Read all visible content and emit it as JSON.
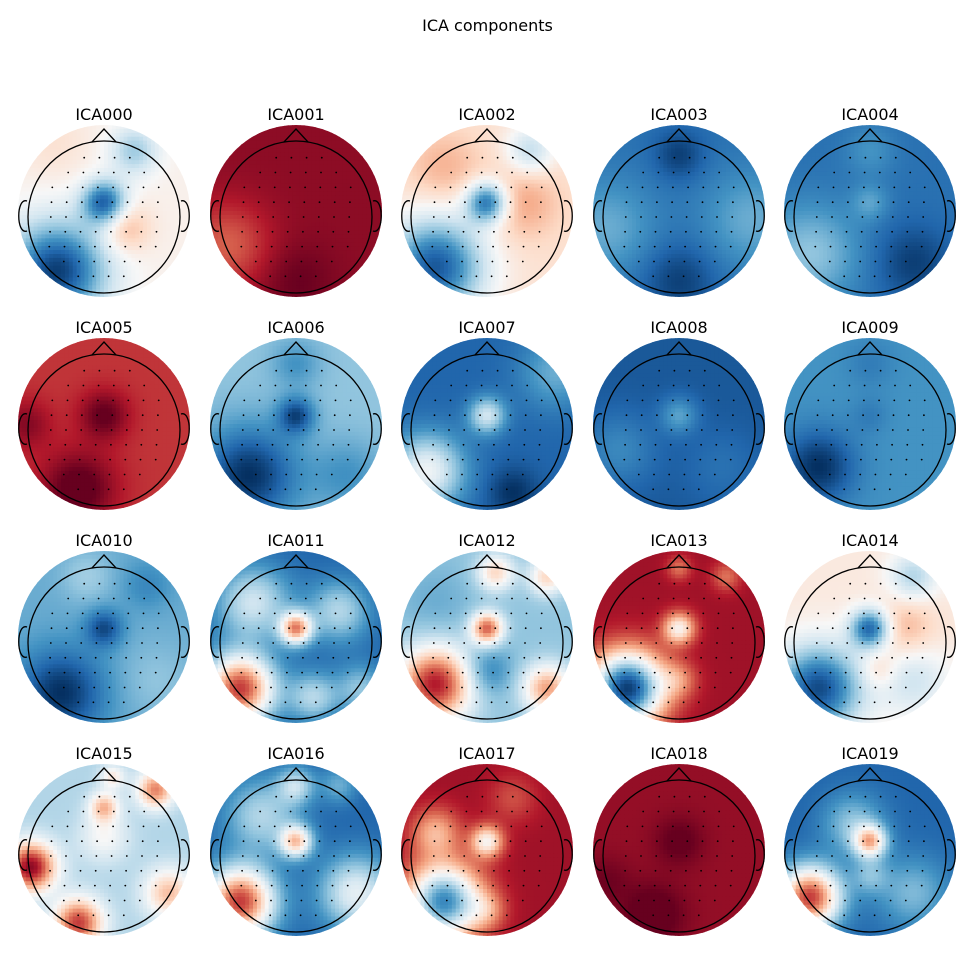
{
  "figure": {
    "title": "ICA components"
  },
  "chart_data": {
    "type": "heatmap",
    "title": "ICA components",
    "colormap": "RdBu_r",
    "grid": false,
    "legend": "none",
    "components": [
      {
        "name": "ICA000",
        "base": 0.05,
        "blobs": [
          [
            0.0,
            0.1,
            -0.85,
            0.18
          ],
          [
            -0.55,
            -0.7,
            -1.0,
            0.4
          ],
          [
            0.35,
            0.7,
            -0.4,
            0.2
          ],
          [
            0.25,
            -0.2,
            0.3,
            0.2
          ],
          [
            -0.6,
            0.8,
            0.1,
            0.3
          ]
        ]
      },
      {
        "name": "ICA001",
        "base": 0.9,
        "blobs": [
          [
            -0.8,
            -0.4,
            -0.3,
            0.35
          ],
          [
            0.0,
            -0.8,
            0.1,
            0.3
          ]
        ]
      },
      {
        "name": "ICA002",
        "base": 0.15,
        "blobs": [
          [
            0.0,
            0.1,
            -0.9,
            0.17
          ],
          [
            -0.6,
            -0.65,
            -1.0,
            0.4
          ],
          [
            0.5,
            0.7,
            -0.4,
            0.2
          ],
          [
            0.4,
            0.1,
            0.25,
            0.3
          ],
          [
            -0.5,
            0.5,
            0.2,
            0.3
          ]
        ]
      },
      {
        "name": "ICA003",
        "base": -0.75,
        "blobs": [
          [
            -0.85,
            -0.2,
            0.25,
            0.4
          ],
          [
            0.85,
            -0.1,
            0.25,
            0.4
          ],
          [
            0.0,
            0.65,
            -0.2,
            0.2
          ],
          [
            0.0,
            -0.8,
            -0.2,
            0.3
          ]
        ]
      },
      {
        "name": "ICA004",
        "base": -0.75,
        "blobs": [
          [
            -0.7,
            -0.5,
            0.35,
            0.4
          ],
          [
            0.0,
            0.1,
            0.2,
            0.15
          ],
          [
            0.0,
            0.7,
            0.15,
            0.2
          ],
          [
            0.5,
            -0.6,
            -0.2,
            0.3
          ]
        ]
      },
      {
        "name": "ICA005",
        "base": 0.72,
        "blobs": [
          [
            0.0,
            0.1,
            0.3,
            0.2
          ],
          [
            -0.3,
            -0.75,
            0.35,
            0.3
          ],
          [
            -0.9,
            0.0,
            0.2,
            0.2
          ]
        ]
      },
      {
        "name": "ICA006",
        "base": -0.4,
        "blobs": [
          [
            0.0,
            0.1,
            -0.5,
            0.15
          ],
          [
            -0.55,
            -0.6,
            -0.6,
            0.4
          ],
          [
            0.0,
            0.7,
            -0.2,
            0.2
          ],
          [
            0.6,
            -0.6,
            -0.2,
            0.3
          ]
        ]
      },
      {
        "name": "ICA007",
        "base": -0.8,
        "blobs": [
          [
            0.0,
            0.1,
            0.6,
            0.15
          ],
          [
            -0.7,
            -0.55,
            0.75,
            0.3
          ],
          [
            0.3,
            -0.8,
            -0.2,
            0.2
          ],
          [
            0.8,
            0.6,
            0.3,
            0.3
          ]
        ]
      },
      {
        "name": "ICA008",
        "base": -0.85,
        "blobs": [
          [
            0.0,
            0.1,
            0.3,
            0.15
          ],
          [
            -0.7,
            -0.3,
            0.2,
            0.3
          ],
          [
            0.5,
            -0.5,
            0.1,
            0.3
          ]
        ]
      },
      {
        "name": "ICA009",
        "base": -0.6,
        "blobs": [
          [
            -0.6,
            -0.5,
            -0.4,
            0.3
          ],
          [
            0.0,
            0.1,
            -0.1,
            0.15
          ],
          [
            0.0,
            0.7,
            -0.1,
            0.2
          ]
        ]
      },
      {
        "name": "ICA010",
        "base": -0.5,
        "blobs": [
          [
            0.0,
            0.1,
            -0.4,
            0.15
          ],
          [
            -0.5,
            -0.65,
            -0.5,
            0.35
          ],
          [
            -0.2,
            0.7,
            0.15,
            0.2
          ],
          [
            0.5,
            0.6,
            -0.15,
            0.2
          ],
          [
            0.6,
            -0.5,
            0.1,
            0.3
          ]
        ]
      },
      {
        "name": "ICA011",
        "base": -0.8,
        "blobs": [
          [
            0.0,
            0.1,
            1.2,
            0.13
          ],
          [
            -0.65,
            -0.6,
            1.5,
            0.28
          ],
          [
            -0.5,
            0.4,
            0.6,
            0.3
          ],
          [
            0.5,
            0.3,
            0.5,
            0.25
          ],
          [
            0.2,
            -0.7,
            0.5,
            0.2
          ],
          [
            0.75,
            -0.6,
            0.4,
            0.2
          ]
        ]
      },
      {
        "name": "ICA012",
        "base": -0.4,
        "blobs": [
          [
            0.0,
            0.1,
            1.0,
            0.13
          ],
          [
            -0.6,
            -0.55,
            1.2,
            0.3
          ],
          [
            0.1,
            0.75,
            0.6,
            0.15
          ],
          [
            0.7,
            0.7,
            0.6,
            0.15
          ],
          [
            0.7,
            -0.6,
            0.8,
            0.2
          ],
          [
            -0.6,
            0.4,
            -0.1,
            0.3
          ],
          [
            0.0,
            -0.4,
            -0.3,
            0.2
          ]
        ]
      },
      {
        "name": "ICA013",
        "base": 0.85,
        "blobs": [
          [
            0.0,
            0.1,
            -0.8,
            0.13
          ],
          [
            -0.6,
            -0.6,
            -1.8,
            0.3
          ],
          [
            0.0,
            -0.5,
            -0.3,
            0.15
          ],
          [
            0.0,
            0.8,
            -0.3,
            0.1
          ],
          [
            0.55,
            0.7,
            -0.3,
            0.12
          ]
        ]
      },
      {
        "name": "ICA014",
        "base": 0.1,
        "blobs": [
          [
            0.0,
            0.1,
            -0.9,
            0.16
          ],
          [
            -0.6,
            -0.6,
            -1.0,
            0.35
          ],
          [
            0.5,
            0.7,
            -0.4,
            0.2
          ],
          [
            0.4,
            0.1,
            0.25,
            0.25
          ],
          [
            0.5,
            -0.5,
            -0.3,
            0.3
          ],
          [
            0.1,
            -0.4,
            0.2,
            0.15
          ]
        ]
      },
      {
        "name": "ICA015",
        "base": -0.3,
        "blobs": [
          [
            0.0,
            0.5,
            0.6,
            0.12
          ],
          [
            0.1,
            0.85,
            0.4,
            0.1
          ],
          [
            0.6,
            0.7,
            0.8,
            0.15
          ],
          [
            -0.85,
            -0.2,
            1.2,
            0.2
          ],
          [
            -0.3,
            -0.85,
            1.0,
            0.2
          ],
          [
            0.75,
            -0.5,
            0.6,
            0.2
          ],
          [
            0.0,
            0.15,
            0.3,
            0.2
          ]
        ]
      },
      {
        "name": "ICA016",
        "base": -0.8,
        "blobs": [
          [
            0.0,
            0.1,
            1.0,
            0.13
          ],
          [
            -0.65,
            -0.6,
            1.5,
            0.28
          ],
          [
            0.7,
            -0.5,
            0.7,
            0.3
          ],
          [
            -0.4,
            0.4,
            0.5,
            0.3
          ],
          [
            0.0,
            0.75,
            0.5,
            0.15
          ],
          [
            0.5,
            0.75,
            0.3,
            0.15
          ]
        ]
      },
      {
        "name": "ICA017",
        "base": 0.85,
        "blobs": [
          [
            0.0,
            0.1,
            -0.8,
            0.13
          ],
          [
            -0.5,
            -0.6,
            -1.5,
            0.3
          ],
          [
            0.0,
            -0.7,
            -0.3,
            0.15
          ],
          [
            -0.6,
            0.2,
            -0.5,
            0.2
          ],
          [
            0.3,
            0.6,
            -0.2,
            0.2
          ]
        ]
      },
      {
        "name": "ICA018",
        "base": 0.88,
        "blobs": [
          [
            0.0,
            0.1,
            0.15,
            0.2
          ],
          [
            -0.3,
            -0.75,
            0.2,
            0.25
          ],
          [
            -0.85,
            -0.35,
            0.1,
            0.2
          ]
        ]
      },
      {
        "name": "ICA019",
        "base": -0.8,
        "blobs": [
          [
            0.0,
            0.1,
            1.0,
            0.13
          ],
          [
            -0.7,
            -0.55,
            1.5,
            0.25
          ],
          [
            0.5,
            -0.5,
            0.35,
            0.3
          ],
          [
            -0.2,
            0.3,
            0.4,
            0.25
          ],
          [
            0.0,
            -0.3,
            0.3,
            0.15
          ]
        ]
      }
    ]
  }
}
